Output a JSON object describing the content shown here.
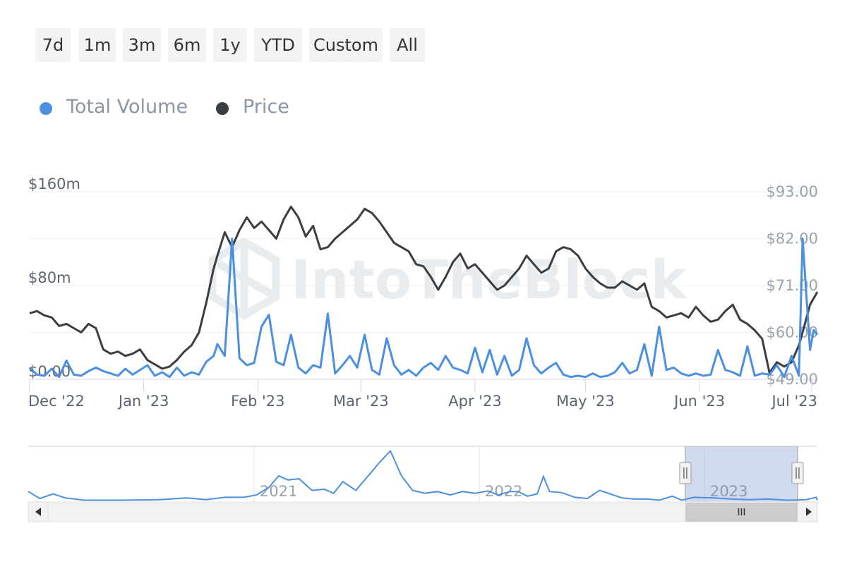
{
  "range_buttons": [
    "7d",
    "1m",
    "3m",
    "6m",
    "1y",
    "YTD",
    "Custom",
    "All"
  ],
  "legend": [
    {
      "label": "Total Volume",
      "color": "#4a8fe0",
      "icon": "circle-dot-icon"
    },
    {
      "label": "Price",
      "color": "#3a3d41",
      "icon": "circle-dot-icon"
    }
  ],
  "watermark": "IntoTheBlock",
  "chart_data": {
    "type": "line",
    "left_axis": {
      "ticks": [
        "$0.00",
        "$80m",
        "$160m"
      ],
      "values": [
        0,
        80,
        160
      ],
      "unit": "million USD"
    },
    "right_axis": {
      "ticks": [
        "$49.00",
        "$60.00",
        "$71.00",
        "$82.00",
        "$93.00"
      ],
      "values": [
        49,
        60,
        71,
        82,
        93
      ]
    },
    "x_ticks": [
      "Dec '22",
      "Jan '23",
      "Feb '23",
      "Mar '23",
      "Apr '23",
      "May '23",
      "Jun '23",
      "Jul '23"
    ],
    "x_tick_dates": [
      "2022-12-01",
      "2023-01-01",
      "2023-02-01",
      "2023-03-01",
      "2023-04-01",
      "2023-05-01",
      "2023-06-01",
      "2023-07-01"
    ],
    "x_range": [
      "2022-12-01",
      "2023-07-03"
    ],
    "grid": true,
    "legend_position": "top-left",
    "series": [
      {
        "name": "Price",
        "color": "#3a3d41",
        "axis": "right",
        "points": [
          [
            "2022-12-01",
            64.5
          ],
          [
            "2022-12-03",
            65
          ],
          [
            "2022-12-05",
            64
          ],
          [
            "2022-12-07",
            63.5
          ],
          [
            "2022-12-09",
            61.5
          ],
          [
            "2022-12-11",
            62
          ],
          [
            "2022-12-13",
            61
          ],
          [
            "2022-12-15",
            60
          ],
          [
            "2022-12-17",
            62
          ],
          [
            "2022-12-19",
            61
          ],
          [
            "2022-12-21",
            56
          ],
          [
            "2022-12-23",
            55
          ],
          [
            "2022-12-25",
            55.5
          ],
          [
            "2022-12-27",
            54.5
          ],
          [
            "2022-12-29",
            55
          ],
          [
            "2022-12-31",
            56
          ],
          [
            "2023-01-02",
            53.5
          ],
          [
            "2023-01-04",
            52.5
          ],
          [
            "2023-01-06",
            51.5
          ],
          [
            "2023-01-08",
            52
          ],
          [
            "2023-01-10",
            53.5
          ],
          [
            "2023-01-12",
            55.5
          ],
          [
            "2023-01-14",
            57
          ],
          [
            "2023-01-16",
            60
          ],
          [
            "2023-01-18",
            67
          ],
          [
            "2023-01-20",
            75
          ],
          [
            "2023-01-21",
            78
          ],
          [
            "2023-01-23",
            83.5
          ],
          [
            "2023-01-25",
            80
          ],
          [
            "2023-01-27",
            84
          ],
          [
            "2023-01-29",
            87
          ],
          [
            "2023-01-31",
            84.5
          ],
          [
            "2023-02-02",
            86
          ],
          [
            "2023-02-04",
            84
          ],
          [
            "2023-02-06",
            82
          ],
          [
            "2023-02-08",
            86.5
          ],
          [
            "2023-02-10",
            89.5
          ],
          [
            "2023-02-12",
            87
          ],
          [
            "2023-02-14",
            82.5
          ],
          [
            "2023-02-16",
            85
          ],
          [
            "2023-02-18",
            79.5
          ],
          [
            "2023-02-20",
            80
          ],
          [
            "2023-02-22",
            82
          ],
          [
            "2023-02-24",
            83.5
          ],
          [
            "2023-02-26",
            85
          ],
          [
            "2023-02-28",
            86.5
          ],
          [
            "2023-03-02",
            89
          ],
          [
            "2023-03-04",
            88
          ],
          [
            "2023-03-06",
            86
          ],
          [
            "2023-03-08",
            83.5
          ],
          [
            "2023-03-10",
            81
          ],
          [
            "2023-03-12",
            80
          ],
          [
            "2023-03-14",
            79
          ],
          [
            "2023-03-16",
            76
          ],
          [
            "2023-03-18",
            75.5
          ],
          [
            "2023-03-20",
            73
          ],
          [
            "2023-03-22",
            70
          ],
          [
            "2023-03-24",
            73
          ],
          [
            "2023-03-26",
            76.5
          ],
          [
            "2023-03-28",
            78.5
          ],
          [
            "2023-03-30",
            75
          ],
          [
            "2023-04-01",
            76
          ],
          [
            "2023-04-03",
            74
          ],
          [
            "2023-04-05",
            72
          ],
          [
            "2023-04-07",
            70
          ],
          [
            "2023-04-09",
            71
          ],
          [
            "2023-04-11",
            73
          ],
          [
            "2023-04-13",
            75
          ],
          [
            "2023-04-15",
            78
          ],
          [
            "2023-04-17",
            76
          ],
          [
            "2023-04-19",
            74
          ],
          [
            "2023-04-21",
            75
          ],
          [
            "2023-04-23",
            79
          ],
          [
            "2023-04-25",
            80
          ],
          [
            "2023-04-27",
            79.5
          ],
          [
            "2023-04-29",
            78
          ],
          [
            "2023-05-01",
            75
          ],
          [
            "2023-05-03",
            73
          ],
          [
            "2023-05-05",
            71.5
          ],
          [
            "2023-05-07",
            70.5
          ],
          [
            "2023-05-09",
            70.5
          ],
          [
            "2023-05-11",
            72
          ],
          [
            "2023-05-13",
            71
          ],
          [
            "2023-05-15",
            70
          ],
          [
            "2023-05-17",
            71.5
          ],
          [
            "2023-05-19",
            66
          ],
          [
            "2023-05-21",
            65
          ],
          [
            "2023-05-23",
            63.5
          ],
          [
            "2023-05-25",
            64
          ],
          [
            "2023-05-27",
            64.5
          ],
          [
            "2023-05-29",
            63.5
          ],
          [
            "2023-05-31",
            66
          ],
          [
            "2023-06-02",
            64
          ],
          [
            "2023-06-04",
            62.5
          ],
          [
            "2023-06-06",
            63
          ],
          [
            "2023-06-08",
            65
          ],
          [
            "2023-06-10",
            66.5
          ],
          [
            "2023-06-12",
            63
          ],
          [
            "2023-06-14",
            62
          ],
          [
            "2023-06-16",
            60.5
          ],
          [
            "2023-06-18",
            58.5
          ],
          [
            "2023-06-20",
            50.5
          ],
          [
            "2023-06-22",
            53
          ],
          [
            "2023-06-24",
            52
          ],
          [
            "2023-06-26",
            53
          ],
          [
            "2023-06-28",
            57
          ],
          [
            "2023-06-29",
            60
          ],
          [
            "2023-07-01",
            66.5
          ],
          [
            "2023-07-02",
            68
          ],
          [
            "2023-07-03",
            69.5
          ]
        ]
      },
      {
        "name": "Total Volume",
        "color": "#4a8fe0",
        "axis": "left",
        "points": [
          [
            "2022-12-01",
            10
          ],
          [
            "2022-12-03",
            4
          ],
          [
            "2022-12-05",
            3
          ],
          [
            "2022-12-07",
            9
          ],
          [
            "2022-12-09",
            2
          ],
          [
            "2022-12-11",
            16
          ],
          [
            "2022-12-13",
            4
          ],
          [
            "2022-12-15",
            3
          ],
          [
            "2022-12-17",
            7
          ],
          [
            "2022-12-19",
            10
          ],
          [
            "2022-12-21",
            7
          ],
          [
            "2022-12-23",
            5
          ],
          [
            "2022-12-25",
            3
          ],
          [
            "2022-12-27",
            9
          ],
          [
            "2022-12-29",
            4
          ],
          [
            "2022-12-31",
            8
          ],
          [
            "2023-01-02",
            12
          ],
          [
            "2023-01-04",
            3
          ],
          [
            "2023-01-06",
            6
          ],
          [
            "2023-01-08",
            2
          ],
          [
            "2023-01-10",
            10
          ],
          [
            "2023-01-12",
            3
          ],
          [
            "2023-01-14",
            6
          ],
          [
            "2023-01-16",
            4
          ],
          [
            "2023-01-18",
            15
          ],
          [
            "2023-01-20",
            20
          ],
          [
            "2023-01-21",
            30
          ],
          [
            "2023-01-23",
            20
          ],
          [
            "2023-01-25",
            120
          ],
          [
            "2023-01-27",
            18
          ],
          [
            "2023-01-29",
            12
          ],
          [
            "2023-01-31",
            14
          ],
          [
            "2023-02-02",
            45
          ],
          [
            "2023-02-04",
            55
          ],
          [
            "2023-02-06",
            15
          ],
          [
            "2023-02-08",
            12
          ],
          [
            "2023-02-10",
            38
          ],
          [
            "2023-02-12",
            10
          ],
          [
            "2023-02-14",
            5
          ],
          [
            "2023-02-16",
            12
          ],
          [
            "2023-02-18",
            10
          ],
          [
            "2023-02-20",
            56
          ],
          [
            "2023-02-22",
            5
          ],
          [
            "2023-02-24",
            12
          ],
          [
            "2023-02-26",
            20
          ],
          [
            "2023-02-28",
            10
          ],
          [
            "2023-03-02",
            38
          ],
          [
            "2023-03-04",
            8
          ],
          [
            "2023-03-06",
            4
          ],
          [
            "2023-03-08",
            35
          ],
          [
            "2023-03-10",
            12
          ],
          [
            "2023-03-12",
            4
          ],
          [
            "2023-03-14",
            8
          ],
          [
            "2023-03-16",
            3
          ],
          [
            "2023-03-18",
            10
          ],
          [
            "2023-03-20",
            14
          ],
          [
            "2023-03-22",
            8
          ],
          [
            "2023-03-24",
            20
          ],
          [
            "2023-03-26",
            10
          ],
          [
            "2023-03-28",
            8
          ],
          [
            "2023-03-30",
            5
          ],
          [
            "2023-04-01",
            27
          ],
          [
            "2023-04-03",
            6
          ],
          [
            "2023-04-05",
            25
          ],
          [
            "2023-04-07",
            4
          ],
          [
            "2023-04-09",
            20
          ],
          [
            "2023-04-11",
            3
          ],
          [
            "2023-04-13",
            8
          ],
          [
            "2023-04-15",
            35
          ],
          [
            "2023-04-17",
            12
          ],
          [
            "2023-04-19",
            5
          ],
          [
            "2023-04-21",
            10
          ],
          [
            "2023-04-23",
            14
          ],
          [
            "2023-04-25",
            4
          ],
          [
            "2023-04-27",
            2
          ],
          [
            "2023-04-29",
            3
          ],
          [
            "2023-05-01",
            2
          ],
          [
            "2023-05-03",
            5
          ],
          [
            "2023-05-05",
            2
          ],
          [
            "2023-05-07",
            3
          ],
          [
            "2023-05-09",
            6
          ],
          [
            "2023-05-11",
            14
          ],
          [
            "2023-05-13",
            5
          ],
          [
            "2023-05-15",
            8
          ],
          [
            "2023-05-17",
            30
          ],
          [
            "2023-05-19",
            3
          ],
          [
            "2023-05-21",
            45
          ],
          [
            "2023-05-23",
            8
          ],
          [
            "2023-05-25",
            10
          ],
          [
            "2023-05-27",
            5
          ],
          [
            "2023-05-29",
            3
          ],
          [
            "2023-05-31",
            5
          ],
          [
            "2023-06-02",
            3
          ],
          [
            "2023-06-04",
            4
          ],
          [
            "2023-06-06",
            25
          ],
          [
            "2023-06-08",
            8
          ],
          [
            "2023-06-10",
            6
          ],
          [
            "2023-06-12",
            3
          ],
          [
            "2023-06-14",
            28
          ],
          [
            "2023-06-16",
            3
          ],
          [
            "2023-06-18",
            5
          ],
          [
            "2023-06-20",
            4
          ],
          [
            "2023-06-22",
            12
          ],
          [
            "2023-06-24",
            2
          ],
          [
            "2023-06-26",
            20
          ],
          [
            "2023-06-28",
            3
          ],
          [
            "2023-06-29",
            120
          ],
          [
            "2023-07-01",
            25
          ],
          [
            "2023-07-02",
            42
          ],
          [
            "2023-07-03",
            38
          ]
        ]
      }
    ]
  },
  "navigator": {
    "year_labels": [
      "2021",
      "2022",
      "2023"
    ],
    "year_dates": [
      "2021-01-01",
      "2022-01-01",
      "2023-01-01"
    ],
    "range": [
      "2020-01-01",
      "2023-07-03"
    ],
    "selected_range": [
      "2022-12-01",
      "2023-07-03"
    ],
    "volume_series": [
      [
        "2020-01-01",
        18
      ],
      [
        "2020-01-20",
        6
      ],
      [
        "2020-02-10",
        14
      ],
      [
        "2020-03-01",
        7
      ],
      [
        "2020-04-01",
        3
      ],
      [
        "2020-06-01",
        3
      ],
      [
        "2020-08-01",
        4
      ],
      [
        "2020-09-15",
        7
      ],
      [
        "2020-10-15",
        4
      ],
      [
        "2020-11-15",
        8
      ],
      [
        "2020-12-15",
        8
      ],
      [
        "2021-01-05",
        12
      ],
      [
        "2021-01-25",
        25
      ],
      [
        "2021-02-10",
        45
      ],
      [
        "2021-02-25",
        38
      ],
      [
        "2021-03-15",
        40
      ],
      [
        "2021-04-05",
        20
      ],
      [
        "2021-04-25",
        22
      ],
      [
        "2021-05-10",
        15
      ],
      [
        "2021-05-25",
        35
      ],
      [
        "2021-06-15",
        20
      ],
      [
        "2021-07-05",
        45
      ],
      [
        "2021-07-25",
        70
      ],
      [
        "2021-08-10",
        88
      ],
      [
        "2021-08-28",
        45
      ],
      [
        "2021-09-15",
        20
      ],
      [
        "2021-10-05",
        15
      ],
      [
        "2021-10-25",
        18
      ],
      [
        "2021-11-15",
        12
      ],
      [
        "2021-12-05",
        18
      ],
      [
        "2021-12-25",
        15
      ],
      [
        "2022-01-15",
        19
      ],
      [
        "2022-02-01",
        12
      ],
      [
        "2022-02-20",
        18
      ],
      [
        "2022-03-05",
        18
      ],
      [
        "2022-03-20",
        10
      ],
      [
        "2022-04-05",
        14
      ],
      [
        "2022-04-15",
        44
      ],
      [
        "2022-04-25",
        18
      ],
      [
        "2022-05-15",
        16
      ],
      [
        "2022-06-05",
        8
      ],
      [
        "2022-06-25",
        6
      ],
      [
        "2022-07-15",
        20
      ],
      [
        "2022-08-01",
        14
      ],
      [
        "2022-08-20",
        7
      ],
      [
        "2022-09-10",
        5
      ],
      [
        "2022-10-01",
        5
      ],
      [
        "2022-10-20",
        3
      ],
      [
        "2022-11-10",
        10
      ],
      [
        "2022-11-25",
        3
      ],
      [
        "2022-12-15",
        8
      ],
      [
        "2023-01-15",
        7
      ],
      [
        "2023-02-15",
        5
      ],
      [
        "2023-03-15",
        4
      ],
      [
        "2023-04-15",
        5
      ],
      [
        "2023-05-15",
        3
      ],
      [
        "2023-06-15",
        4
      ],
      [
        "2023-07-01",
        8
      ],
      [
        "2023-07-03",
        3
      ]
    ]
  }
}
